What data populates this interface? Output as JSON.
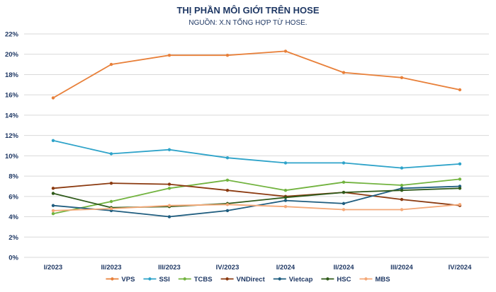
{
  "chart_data": {
    "type": "line",
    "title": "THỊ PHẦN MÔI GIỚI TRÊN HOSE",
    "subtitle": "NGUỒN: X.N TỔNG HỢP TỪ HOSE.",
    "categories": [
      "I/2023",
      "II/2023",
      "III/2023",
      "IV/2023",
      "I/2024",
      "II/2024",
      "III/2024",
      "IV/2024"
    ],
    "ylim": [
      0,
      22
    ],
    "yticks": [
      0,
      2,
      4,
      6,
      8,
      10,
      12,
      14,
      16,
      18,
      20,
      22
    ],
    "ytick_suffix": "%",
    "grid": true,
    "legend_position": "bottom",
    "series": [
      {
        "name": "VPS",
        "color": "#e8803a",
        "values": [
          15.7,
          19.0,
          19.9,
          19.9,
          20.3,
          18.2,
          17.7,
          16.5
        ]
      },
      {
        "name": "SSI",
        "color": "#2ea3c9",
        "values": [
          11.5,
          10.2,
          10.6,
          9.8,
          9.3,
          9.3,
          8.8,
          9.2
        ]
      },
      {
        "name": "TCBS",
        "color": "#72b33f",
        "values": [
          4.3,
          5.5,
          6.8,
          7.6,
          6.6,
          7.4,
          7.1,
          7.7
        ]
      },
      {
        "name": "VNDirect",
        "color": "#8b3a10",
        "values": [
          6.8,
          7.3,
          7.2,
          6.6,
          6.0,
          6.4,
          5.7,
          5.1
        ]
      },
      {
        "name": "Vietcap",
        "color": "#1f5d7f",
        "values": [
          5.1,
          4.6,
          4.0,
          4.6,
          5.6,
          5.3,
          6.8,
          7.0
        ]
      },
      {
        "name": "HSC",
        "color": "#2f5a1a",
        "values": [
          6.3,
          4.9,
          5.0,
          5.3,
          5.9,
          6.4,
          6.6,
          6.8
        ]
      },
      {
        "name": "MBS",
        "color": "#f4a877",
        "values": [
          4.6,
          4.8,
          5.1,
          5.2,
          5.0,
          4.7,
          4.7,
          5.2
        ]
      }
    ]
  }
}
